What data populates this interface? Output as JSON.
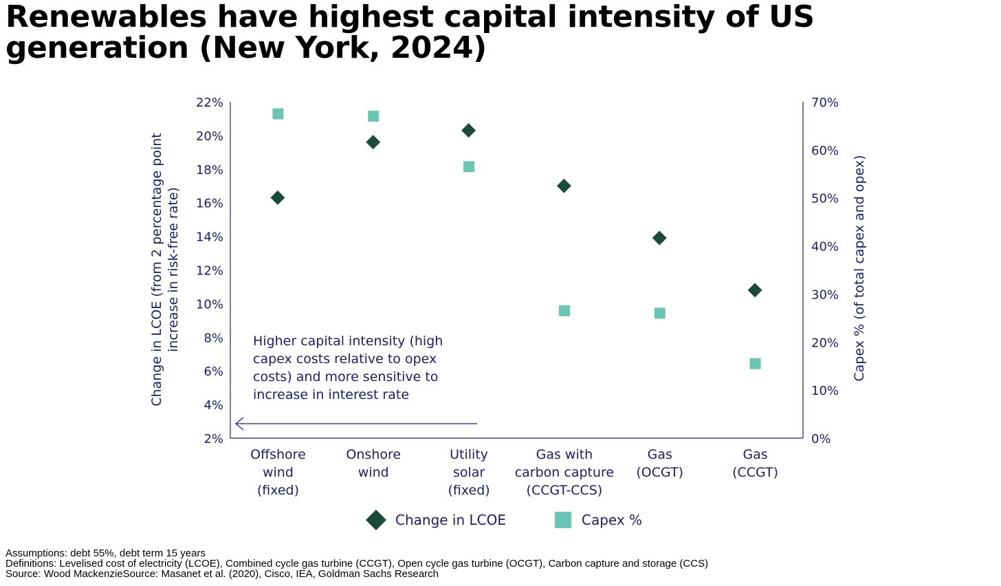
{
  "title": "Renewables have highest capital intensity of US generation (New York, 2024)",
  "chart_data": {
    "type": "scatter",
    "categories": [
      [
        "Offshore",
        "wind",
        "(fixed)"
      ],
      [
        "Onshore",
        "wind"
      ],
      [
        "Utility",
        "solar",
        "(fixed)"
      ],
      [
        "Gas with",
        "carbon capture",
        "(CCGT-CCS)"
      ],
      [
        "Gas",
        "(OCGT)"
      ],
      [
        "Gas",
        "(CCGT)"
      ]
    ],
    "series": [
      {
        "name": "Change in LCOE",
        "axis": "left",
        "marker": "diamond",
        "color": "#1b4a3c",
        "values": [
          16.3,
          19.6,
          20.3,
          17.0,
          13.9,
          10.8
        ]
      },
      {
        "name": "Capex %",
        "axis": "right",
        "marker": "square",
        "color": "#6cc4b2",
        "values": [
          67.5,
          67.0,
          56.5,
          26.5,
          26.0,
          15.5
        ]
      }
    ],
    "y_left": {
      "label": "Change in LCOE (from 2 percentage point increase in risk-free rate)",
      "label_lines": [
        "Change in LCOE (from 2 percentage point",
        "increase in risk-free rate)"
      ],
      "ylim": [
        2,
        22
      ],
      "ticks": [
        "2%",
        "4%",
        "6%",
        "8%",
        "10%",
        "12%",
        "14%",
        "16%",
        "18%",
        "20%",
        "22%"
      ]
    },
    "y_right": {
      "label": "Capex % (of total capex and opex)",
      "ylim": [
        0,
        70
      ],
      "ticks": [
        "0%",
        "10%",
        "20%",
        "30%",
        "40%",
        "50%",
        "60%",
        "70%"
      ]
    },
    "annotation": {
      "lines": [
        "Higher capital intensity (high",
        "capex costs relative to opex",
        "costs) and more sensitive to",
        "increase in interest rate"
      ],
      "arrow_direction": "left"
    },
    "legend": {
      "placement": "bottom-center"
    },
    "grid": false
  },
  "footnotes": {
    "assumptions": "Assumptions: debt 55%, debt term 15 years",
    "definitions": "Definitions: Levelised cost of electricity (LCOE), Combined cycle gas turbine (CCGT), Open cycle gas turbine (OCGT), Carbon capture and storage (CCS)",
    "source": "Source: Wood MackenzieSource: Masanet et al. (2020), Cisco, IEA, Goldman Sachs Research"
  }
}
